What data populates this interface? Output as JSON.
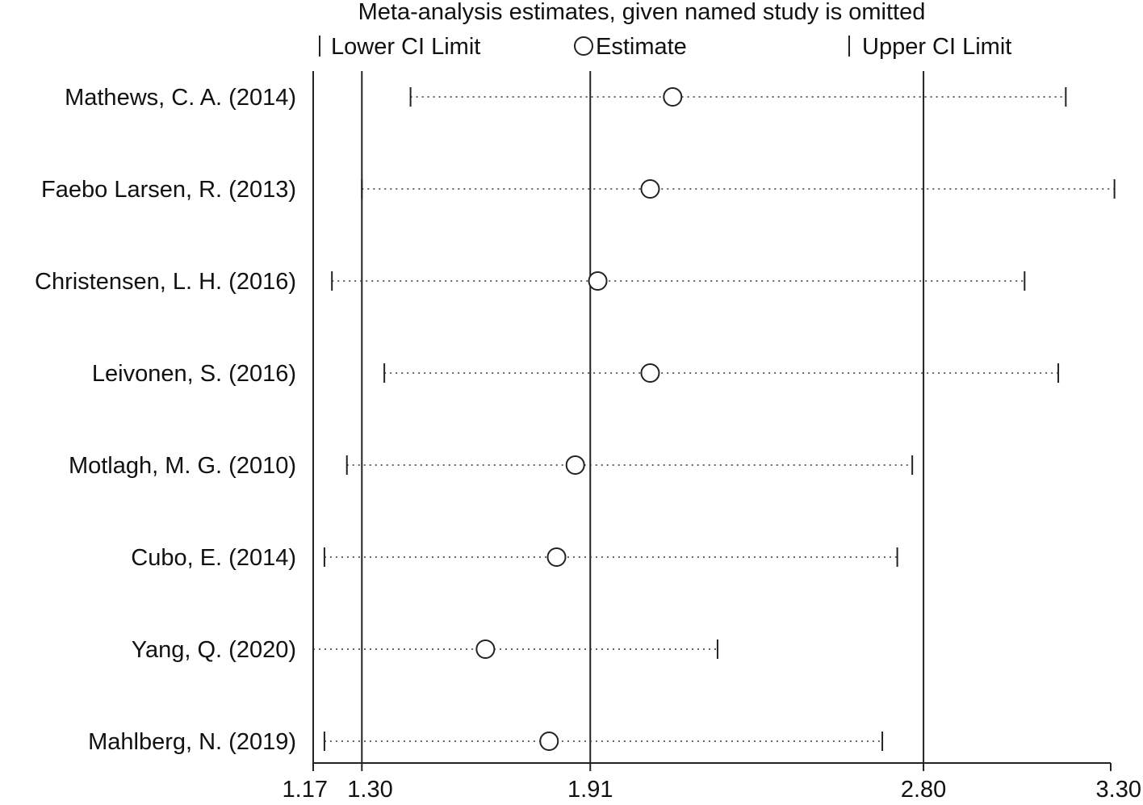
{
  "chart_data": {
    "type": "forest",
    "title": "Meta-analysis estimates, given named study is omitted",
    "legend": {
      "lower": "Lower CI Limit",
      "estimate": "Estimate",
      "upper": "Upper CI Limit"
    },
    "xlim": [
      1.17,
      3.3
    ],
    "ticks": [
      {
        "label": "1.17",
        "value": 1.17
      },
      {
        "label": "1.30",
        "value": 1.3
      },
      {
        "label": "1.91",
        "value": 1.91
      },
      {
        "label": "2.80",
        "value": 2.8
      },
      {
        "label": "3.30",
        "value": 3.3
      }
    ],
    "reference_lines": [
      1.3,
      1.91,
      2.8
    ],
    "studies": [
      {
        "name": "Mathews, C. A. (2014)",
        "lower": 1.43,
        "estimate": 2.13,
        "upper": 3.18
      },
      {
        "name": "Faebo Larsen, R. (2013)",
        "lower": 1.3,
        "estimate": 2.07,
        "upper": 3.31
      },
      {
        "name": "Christensen, L. H. (2016)",
        "lower": 1.22,
        "estimate": 1.93,
        "upper": 3.07
      },
      {
        "name": "Leivonen, S. (2016)",
        "lower": 1.36,
        "estimate": 2.07,
        "upper": 3.16
      },
      {
        "name": "Motlagh, M. G. (2010)",
        "lower": 1.26,
        "estimate": 1.87,
        "upper": 2.77
      },
      {
        "name": "Cubo, E. (2014)",
        "lower": 1.2,
        "estimate": 1.82,
        "upper": 2.73
      },
      {
        "name": "Yang, Q. (2020)",
        "lower": 1.17,
        "estimate": 1.63,
        "upper": 2.25
      },
      {
        "name": "Mahlberg, N. (2019)",
        "lower": 1.2,
        "estimate": 1.8,
        "upper": 2.69
      }
    ]
  }
}
